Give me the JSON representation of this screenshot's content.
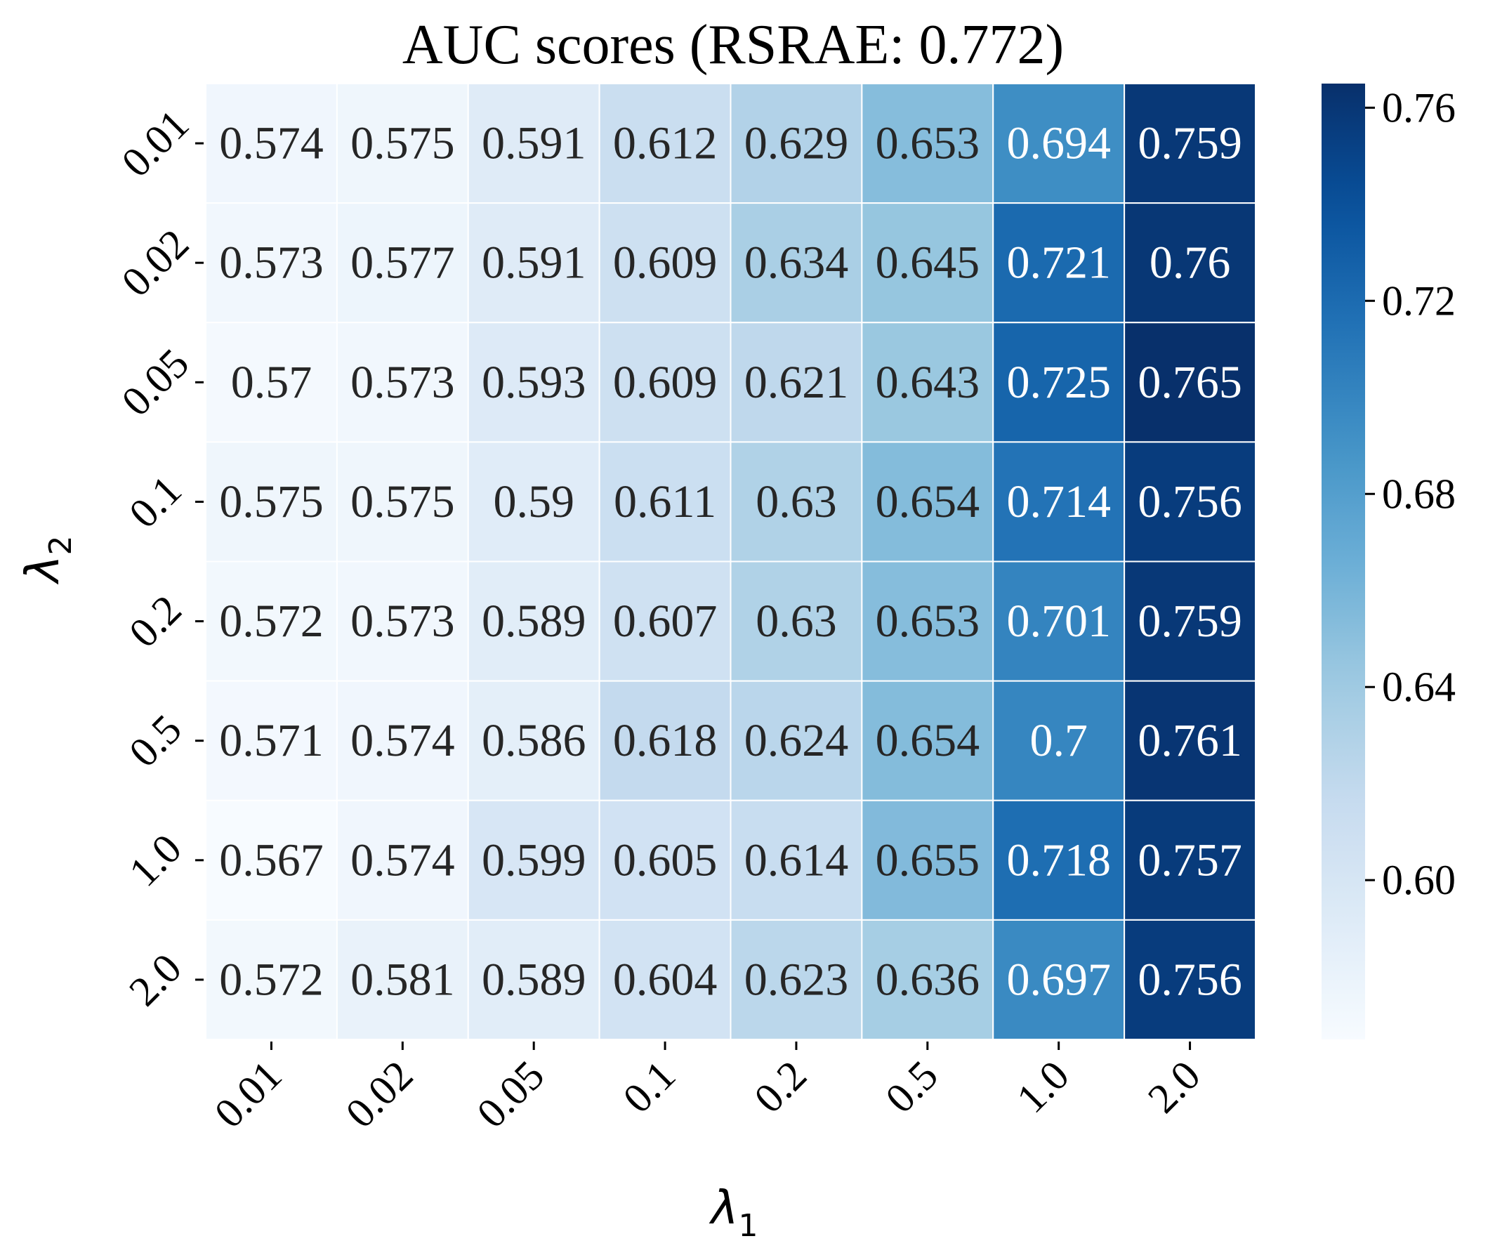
{
  "chart_data": {
    "type": "heatmap",
    "title": "AUC scores (RSRAE: 0.772)",
    "xlabel": "λ",
    "xlabel_sub": "1",
    "ylabel": "λ",
    "ylabel_sub": "2",
    "x_categories": [
      "0.01",
      "0.02",
      "0.05",
      "0.1",
      "0.2",
      "0.5",
      "1.0",
      "2.0"
    ],
    "y_categories": [
      "0.01",
      "0.02",
      "0.05",
      "0.1",
      "0.2",
      "0.5",
      "1.0",
      "2.0"
    ],
    "values": [
      [
        0.574,
        0.575,
        0.591,
        0.612,
        0.629,
        0.653,
        0.694,
        0.759
      ],
      [
        0.573,
        0.577,
        0.591,
        0.609,
        0.634,
        0.645,
        0.721,
        0.76
      ],
      [
        0.57,
        0.573,
        0.593,
        0.609,
        0.621,
        0.643,
        0.725,
        0.765
      ],
      [
        0.575,
        0.575,
        0.59,
        0.611,
        0.63,
        0.654,
        0.714,
        0.756
      ],
      [
        0.572,
        0.573,
        0.589,
        0.607,
        0.63,
        0.653,
        0.701,
        0.759
      ],
      [
        0.571,
        0.574,
        0.586,
        0.618,
        0.624,
        0.654,
        0.7,
        0.761
      ],
      [
        0.567,
        0.574,
        0.599,
        0.605,
        0.614,
        0.655,
        0.718,
        0.757
      ],
      [
        0.572,
        0.581,
        0.589,
        0.604,
        0.623,
        0.636,
        0.697,
        0.756
      ]
    ],
    "colormap": "Blues",
    "vmin": 0.567,
    "vmax": 0.765,
    "colorbar_ticks": [
      0.6,
      0.64,
      0.68,
      0.72,
      0.76
    ],
    "colorbar_tick_labels": [
      "0.60",
      "0.64",
      "0.68",
      "0.72",
      "0.76"
    ],
    "grid_lines": true,
    "grid_color": "#ffffff"
  }
}
